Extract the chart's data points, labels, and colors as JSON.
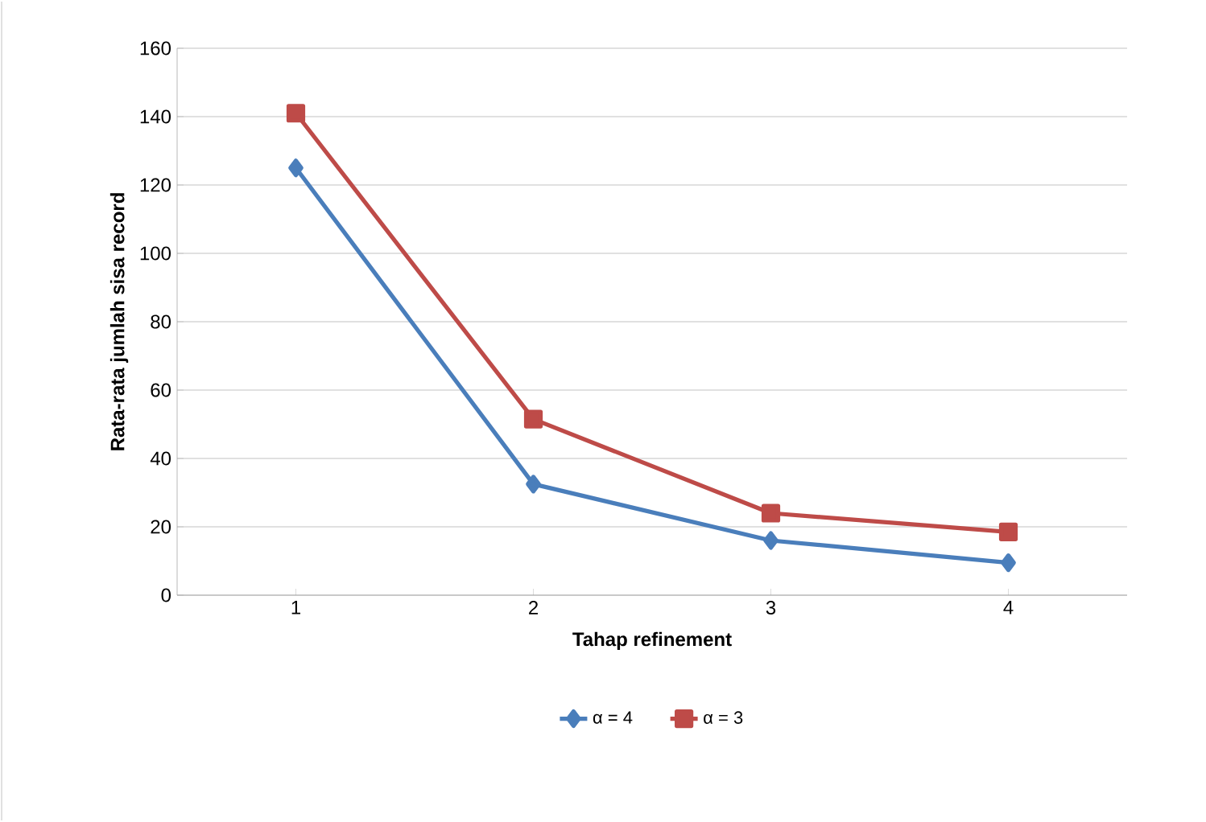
{
  "chart_data": {
    "type": "line",
    "xlabel": "Tahap refinement",
    "ylabel": "Rata-rata jumlah sisa record",
    "categories": [
      "1",
      "2",
      "3",
      "4"
    ],
    "series": [
      {
        "name": "α  = 4",
        "color": "#4a7ebb",
        "marker": "diamond",
        "values": [
          125,
          32.5,
          16,
          9.5
        ]
      },
      {
        "name": "α  = 3",
        "color": "#be4b48",
        "marker": "square",
        "values": [
          141,
          51.5,
          24,
          18.5
        ]
      }
    ],
    "ylim": [
      0,
      160
    ],
    "yticks": [
      0,
      20,
      40,
      60,
      80,
      100,
      120,
      140,
      160
    ],
    "grid": "y",
    "legend": "bottom",
    "line_style": "solid"
  }
}
